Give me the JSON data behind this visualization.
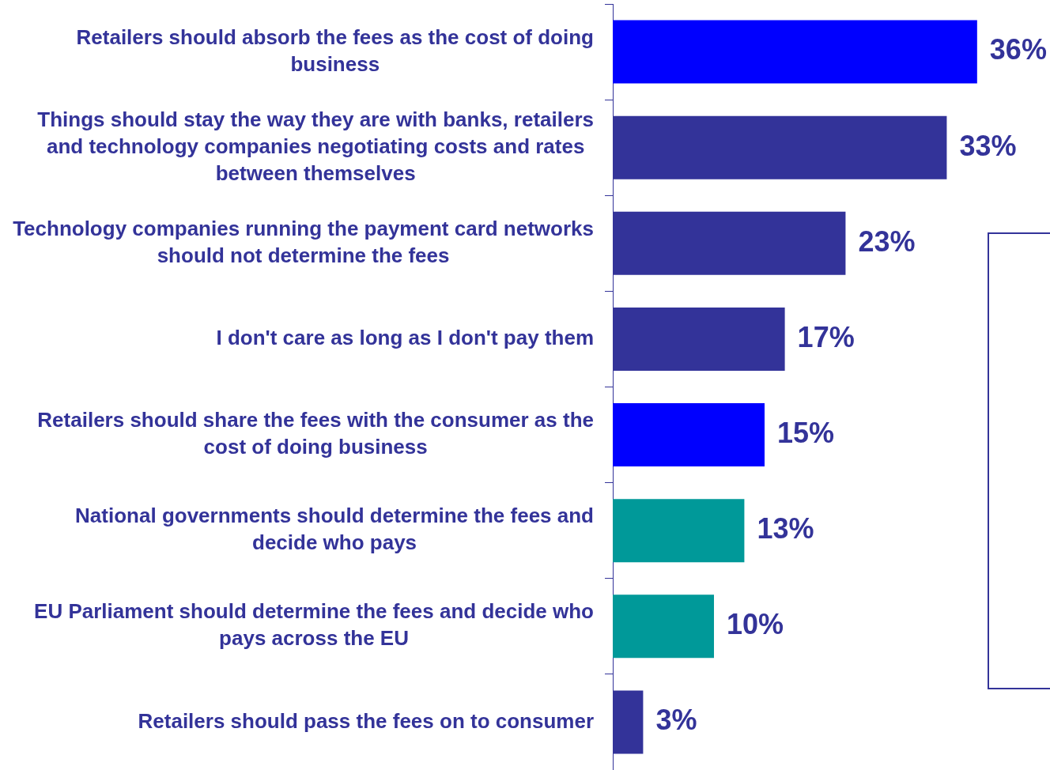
{
  "chart_data": {
    "type": "bar",
    "orientation": "horizontal",
    "categories": [
      "Retailers should absorb the fees as the cost of doing business",
      "Things should stay the way they are with banks, retailers and technology companies negotiating costs and rates between themselves",
      "Technology companies running the payment card networks should not determine the fees",
      "I don't care as long as I don't pay them",
      "Retailers should share the fees with the consumer as the cost of doing business",
      "National governments should determine the fees and decide who pays",
      "EU Parliament should determine the fees and decide who pays across the EU",
      "Retailers should pass the fees on to consumer"
    ],
    "values": [
      36,
      33,
      23,
      17,
      15,
      13,
      10,
      3
    ],
    "value_labels": [
      "36%",
      "33%",
      "23%",
      "17%",
      "15%",
      "13%",
      "10%",
      "3%"
    ],
    "colors": [
      "#0000ff",
      "#333399",
      "#333399",
      "#333399",
      "#0000ff",
      "#009999",
      "#009999",
      "#333399"
    ],
    "legend": false,
    "grid": false
  }
}
